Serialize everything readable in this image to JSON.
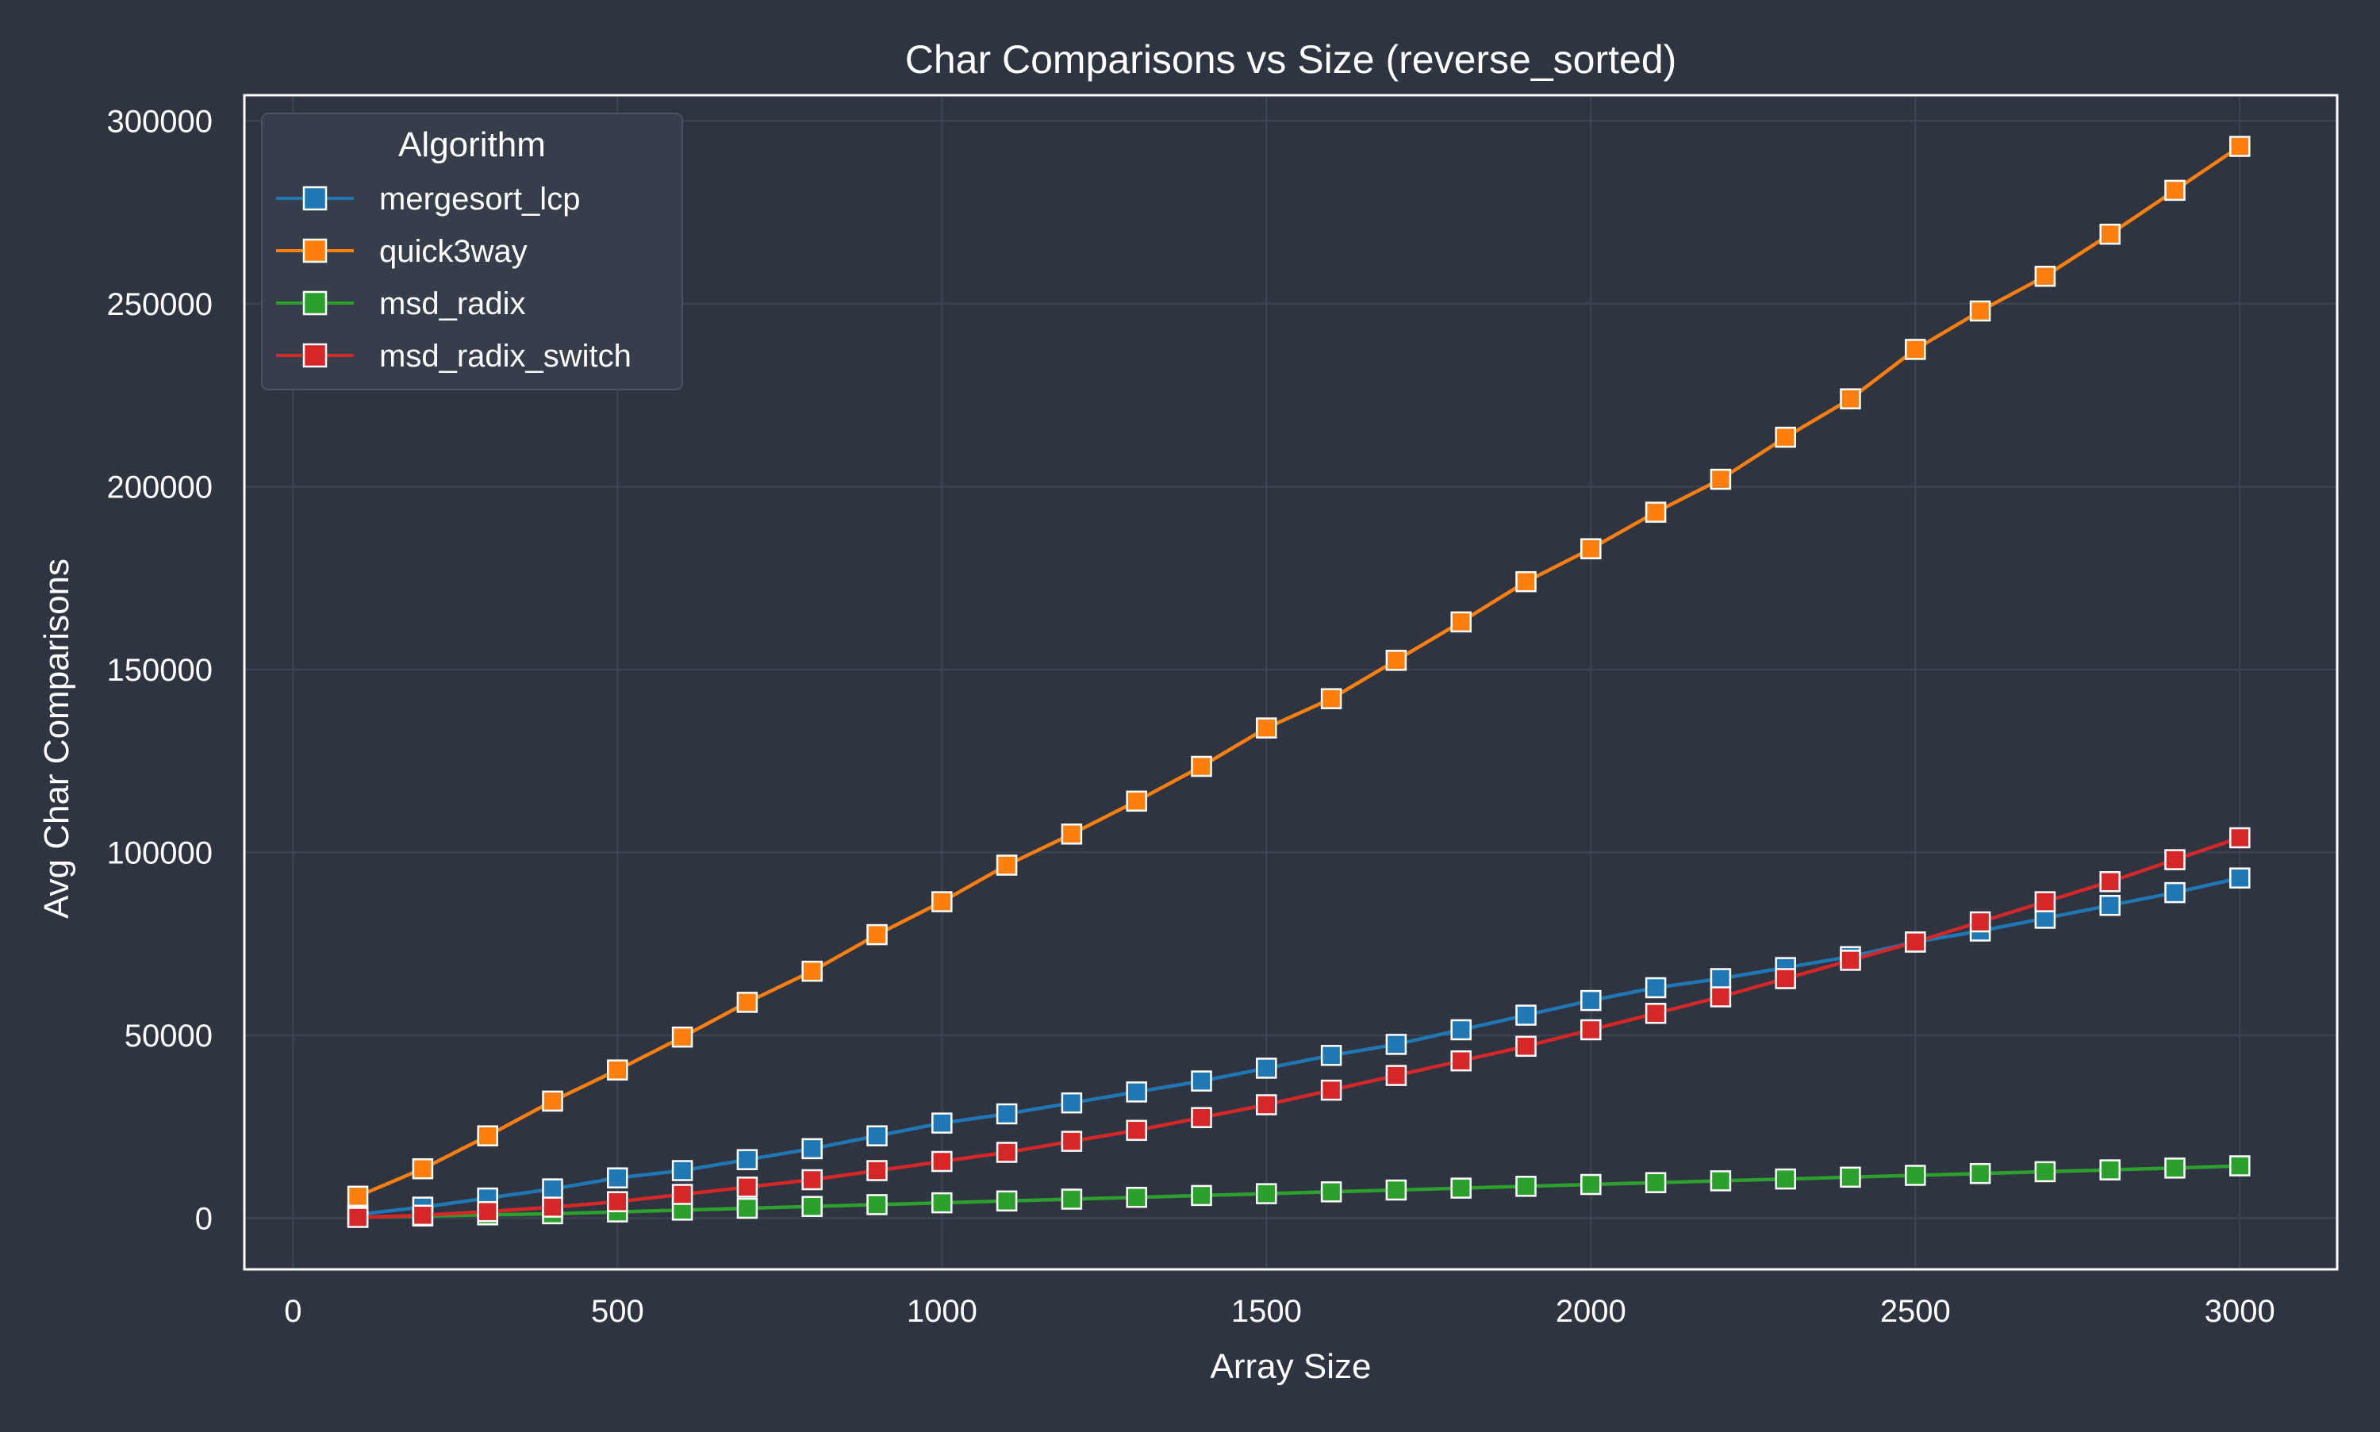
{
  "chart_data": {
    "type": "line",
    "title": "Char Comparisons vs Size (reverse_sorted)",
    "xlabel": "Array Size",
    "ylabel": "Avg Char Comparisons",
    "xlim": [
      -75,
      3150
    ],
    "ylim": [
      -14000,
      307000
    ],
    "xticks": [
      0,
      500,
      1000,
      1500,
      2000,
      2500,
      3000
    ],
    "yticks": [
      0,
      50000,
      100000,
      150000,
      200000,
      250000,
      300000
    ],
    "xtick_labels": [
      "0",
      "500",
      "1000",
      "1500",
      "2000",
      "2500",
      "3000"
    ],
    "ytick_labels": [
      "0",
      "50000",
      "100000",
      "150000",
      "200000",
      "250000",
      "300000"
    ],
    "grid": true,
    "legend_title": "Algorithm",
    "legend_position": "top-left",
    "x": [
      100,
      200,
      300,
      400,
      500,
      600,
      700,
      800,
      900,
      1000,
      1100,
      1200,
      1300,
      1400,
      1500,
      1600,
      1700,
      1800,
      1900,
      2000,
      2100,
      2200,
      2300,
      2400,
      2500,
      2600,
      2700,
      2800,
      2900,
      3000
    ],
    "series": [
      {
        "name": "mergesort_lcp",
        "color": "#1f77b4",
        "values": [
          1000,
          3000,
          5500,
          8000,
          11000,
          13000,
          16000,
          19000,
          22500,
          26000,
          28500,
          31500,
          34500,
          37500,
          41000,
          44500,
          47500,
          51500,
          55500,
          59500,
          63000,
          65500,
          68500,
          71500,
          75500,
          78500,
          82000,
          85500,
          89000,
          93000
        ]
      },
      {
        "name": "quick3way",
        "color": "#ff7f0e",
        "values": [
          6000,
          13500,
          22500,
          32000,
          40500,
          49500,
          59000,
          67500,
          77500,
          86500,
          96500,
          105000,
          114000,
          123500,
          134000,
          142000,
          152500,
          163000,
          174000,
          183000,
          193000,
          202000,
          213500,
          224000,
          237500,
          248000,
          257500,
          269000,
          281000,
          293000
        ]
      },
      {
        "name": "msd_radix",
        "color": "#2ca02c",
        "values": [
          300,
          600,
          900,
          1200,
          1700,
          2200,
          2700,
          3200,
          3700,
          4200,
          4700,
          5200,
          5700,
          6200,
          6700,
          7200,
          7700,
          8200,
          8700,
          9200,
          9700,
          10200,
          10700,
          11200,
          11700,
          12200,
          12700,
          13200,
          13700,
          14300
        ]
      },
      {
        "name": "msd_radix_switch",
        "color": "#d62728",
        "values": [
          200,
          800,
          1800,
          3000,
          4500,
          6500,
          8500,
          10500,
          13000,
          15500,
          18000,
          21000,
          24000,
          27500,
          31000,
          35000,
          39000,
          43000,
          47000,
          51500,
          56000,
          60500,
          65500,
          70500,
          75500,
          81000,
          86500,
          92000,
          98000,
          104000
        ]
      }
    ]
  },
  "style": {
    "background": "#2e3440",
    "text_color": "#ffffff",
    "grid_color": "#3d4657",
    "frame_color": "#ffffff",
    "legend_bg": "#363d4b",
    "legend_border": "#4a5263",
    "marker_edge": "#ffffff"
  }
}
